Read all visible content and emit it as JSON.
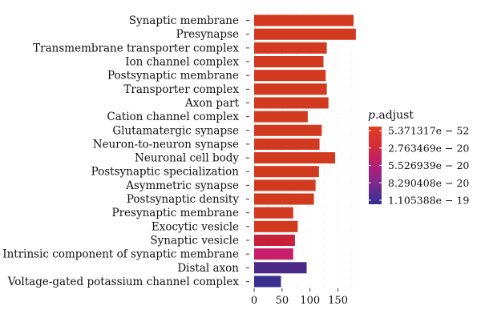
{
  "chart_data": {
    "type": "bar",
    "orientation": "horizontal",
    "title": "",
    "xlabel": "",
    "ylabel": "",
    "xlim": [
      0,
      185
    ],
    "x_ticks": [
      0,
      50,
      100,
      150
    ],
    "categories": [
      "Synaptic membrane",
      "Presynapse",
      "Transmembrane transporter complex",
      "Ion channel complex",
      "Postsynaptic membrane",
      "Transporter complex",
      "Axon part",
      "Cation channel complex",
      "Glutamatergic synapse",
      "Neuron-to-neuron synapse",
      "Neuronal cell body",
      "Postsynaptic specialization",
      "Asymmetric synapse",
      "Postsynaptic density",
      "Presynaptic membrane",
      "Exocytic vesicle",
      "Synaptic vesicle",
      "Intrinsic component of synaptic membrane",
      "Distal axon",
      "Voltage-gated potassium channel complex"
    ],
    "values": [
      178,
      182,
      130,
      124,
      128,
      130,
      133,
      96,
      121,
      117,
      145,
      116,
      110,
      107,
      70,
      78,
      73,
      70,
      94,
      48
    ],
    "bar_colors": [
      "#d13a1f",
      "#d13a1f",
      "#d13a1f",
      "#d13a1f",
      "#d13a1f",
      "#d13a1f",
      "#d13a1f",
      "#d13a1f",
      "#d13a1f",
      "#d13a1f",
      "#d13a1f",
      "#d13a1f",
      "#d13a1f",
      "#d13a1f",
      "#d13a1f",
      "#d13a1f",
      "#c8203a",
      "#c91e6a",
      "#4a2a86",
      "#3a2e8f"
    ],
    "legend": {
      "title_italic": "p",
      "title_rest": ".adjust",
      "position": "right",
      "labels": [
        "5.371317e − 52",
        "2.763469e − 20",
        "5.526939e − 20",
        "8.290408e − 20",
        "1.105388e − 19"
      ],
      "gradient_colors": [
        "#e04020",
        "#d62a3a",
        "#b51e74",
        "#7a2a8c",
        "#2e3192"
      ]
    },
    "grid": true
  }
}
